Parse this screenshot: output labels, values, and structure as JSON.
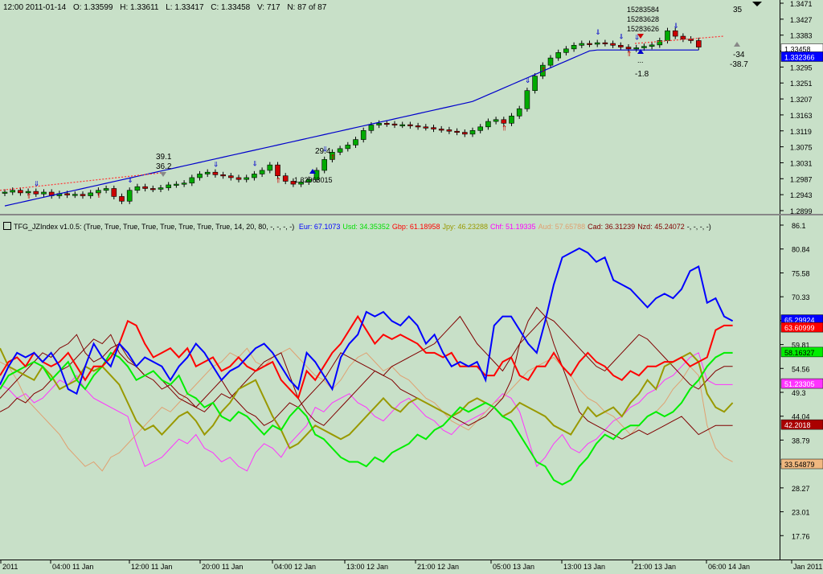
{
  "header": {
    "time": "12:00 2011-01-14",
    "open": "O: 1.33599",
    "high": "H: 1.33611",
    "low": "L: 1.33417",
    "close": "C: 1.33458",
    "volume": "V: 717",
    "bar_count": "N: 87 of 87"
  },
  "indicator": {
    "name": "TFG_JZIndex v1.0.5: (True, True, True, True, True, True, True, True, 14, 20, 80, -, -, -, -)",
    "values": [
      {
        "label": "Eur: 67.1073",
        "color": "#0000ff"
      },
      {
        "label": "Usd: 34.35352",
        "color": "#00dd00"
      },
      {
        "label": "Gbp: 61.18958",
        "color": "#ff0000"
      },
      {
        "label": "Jpy: 46.23288",
        "color": "#999900"
      },
      {
        "label": "Chf: 51.19335",
        "color": "#ff00ff"
      },
      {
        "label": "Aud: 57.65788",
        "color": "#e0a070"
      },
      {
        "label": "Cad: 36.31239",
        "color": "#800000"
      },
      {
        "label": "Nzd: 45.24072",
        "color": "#800000"
      },
      {
        "label": "-, -, -, -)",
        "color": "#000000"
      }
    ]
  },
  "price_axis": {
    "ticks": [
      "1.3471",
      "1.3427",
      "1.3383",
      "1.3339",
      "1.3295",
      "1.3251",
      "1.3207",
      "1.3163",
      "1.3119",
      "1.3075",
      "1.3031",
      "1.2987",
      "1.2943",
      "1.2899"
    ],
    "badges": [
      {
        "text": "1.33458",
        "bg": "#ffffff",
        "fg": "#000000"
      },
      {
        "text": "1.332366",
        "bg": "#0000ff",
        "fg": "#ffffff"
      }
    ]
  },
  "indicator_axis": {
    "ticks": [
      "86.1",
      "80.84",
      "75.58",
      "70.33",
      "65.07",
      "59.81",
      "54.56",
      "49.3",
      "44.04",
      "38.79",
      "33.53",
      "28.27",
      "23.01",
      "17.76"
    ],
    "badges": [
      {
        "text": "65.29924",
        "bg": "#0000ff",
        "fg": "#ffffff"
      },
      {
        "text": "63.60999",
        "bg": "#ff0000",
        "fg": "#ffffff"
      },
      {
        "text": "58.16327",
        "bg": "#00ee00",
        "fg": "#000000"
      },
      {
        "text": "51.23305",
        "bg": "#ff33ff",
        "fg": "#ffffff"
      },
      {
        "text": "42.2018",
        "bg": "#aa0000",
        "fg": "#ffffff"
      },
      {
        "text": "33.54879",
        "bg": "#f0b880",
        "fg": "#000000"
      }
    ]
  },
  "time_axis": {
    "labels": [
      "2011",
      "04:00 11 Jan",
      "12:00 11 Jan",
      "20:00 11 Jan",
      "04:00 12 Jan",
      "13:00 12 Jan",
      "21:00 12 Jan",
      "05:00 13 Jan",
      "13:00 13 Jan",
      "21:00 13 Jan",
      "06:00 14 Jan",
      "Jan 2011"
    ]
  },
  "annotations": {
    "left_top": "39.1",
    "left_bottom": "36.2",
    "mid": "29.4",
    "mid_price": "1.32063015",
    "top_a": "15283584",
    "top_b": "15283628",
    "top_c": "15283626",
    "right_top": "35",
    "neg_small": "-1.8",
    "neg_a": "-34",
    "neg_b": "-38.7",
    "dots": "..."
  },
  "colors": {
    "background": "#c8e0c8",
    "bull": "#00aa00",
    "bear": "#cc0000",
    "ma": "#0000cc"
  }
}
